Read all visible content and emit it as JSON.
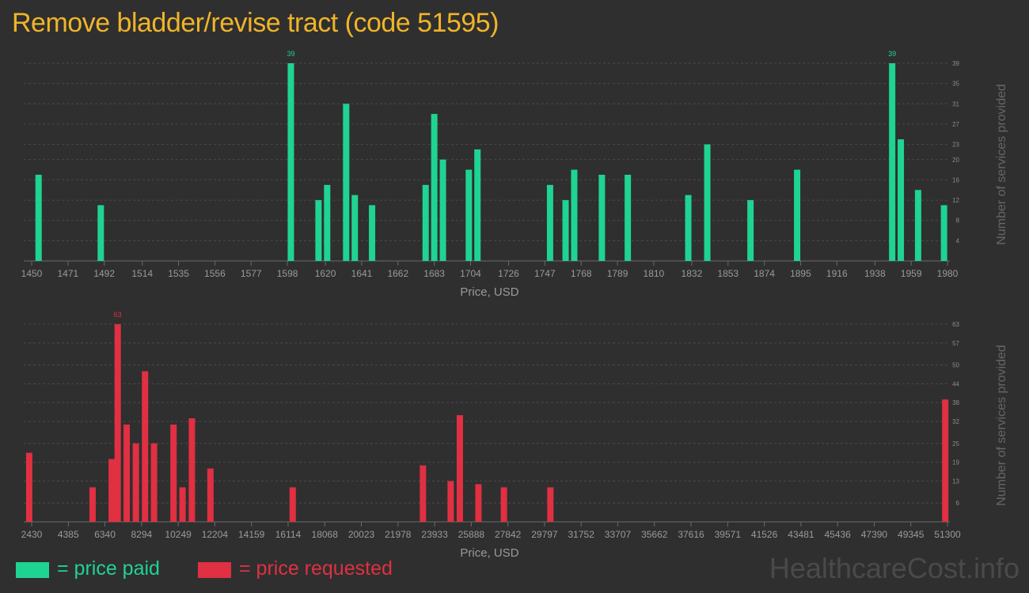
{
  "title": "Remove bladder/revise tract (code 51595)",
  "legend": {
    "paid_label": "= price paid",
    "requested_label": "= price requested",
    "paid_color": "#1fd393",
    "requested_color": "#e03042"
  },
  "watermark": "HealthcareCost.info",
  "chart_data": [
    {
      "type": "bar",
      "series_name": "price paid",
      "color": "#1fd393",
      "xlabel": "Price, USD",
      "ylabel": "Number of services provided",
      "xlim": [
        1450,
        1980
      ],
      "ylim": [
        0,
        39
      ],
      "x_ticks": [
        "1450",
        "1471",
        "1492",
        "1514",
        "1535",
        "1556",
        "1577",
        "1598",
        "1620",
        "1641",
        "1662",
        "1683",
        "1704",
        "1726",
        "1747",
        "1768",
        "1789",
        "1810",
        "1832",
        "1853",
        "1874",
        "1895",
        "1916",
        "1938",
        "1959",
        "1980"
      ],
      "y_ticks": [
        "4",
        "8",
        "12",
        "16",
        "20",
        "23",
        "27",
        "31",
        "35",
        "39"
      ],
      "peak_labels": [
        {
          "x": 1600,
          "text": "39"
        },
        {
          "x": 1948,
          "text": "39"
        }
      ],
      "points": [
        {
          "x": 1454,
          "y": 17
        },
        {
          "x": 1490,
          "y": 11
        },
        {
          "x": 1600,
          "y": 39
        },
        {
          "x": 1616,
          "y": 12
        },
        {
          "x": 1621,
          "y": 15
        },
        {
          "x": 1632,
          "y": 31
        },
        {
          "x": 1637,
          "y": 13
        },
        {
          "x": 1647,
          "y": 11
        },
        {
          "x": 1678,
          "y": 15
        },
        {
          "x": 1683,
          "y": 29
        },
        {
          "x": 1688,
          "y": 20
        },
        {
          "x": 1703,
          "y": 18
        },
        {
          "x": 1708,
          "y": 22
        },
        {
          "x": 1750,
          "y": 15
        },
        {
          "x": 1759,
          "y": 12
        },
        {
          "x": 1764,
          "y": 18
        },
        {
          "x": 1780,
          "y": 17
        },
        {
          "x": 1795,
          "y": 17
        },
        {
          "x": 1830,
          "y": 13
        },
        {
          "x": 1841,
          "y": 23
        },
        {
          "x": 1866,
          "y": 12
        },
        {
          "x": 1893,
          "y": 18
        },
        {
          "x": 1948,
          "y": 39
        },
        {
          "x": 1953,
          "y": 24
        },
        {
          "x": 1963,
          "y": 14
        },
        {
          "x": 1978,
          "y": 11
        }
      ]
    },
    {
      "type": "bar",
      "series_name": "price requested",
      "color": "#e03042",
      "xlabel": "Price, USD",
      "ylabel": "Number of services provided",
      "xlim": [
        2430,
        51300
      ],
      "ylim": [
        0,
        63
      ],
      "x_ticks": [
        "2430",
        "4385",
        "6340",
        "8294",
        "10249",
        "12204",
        "14159",
        "16114",
        "18068",
        "20023",
        "21978",
        "23933",
        "25888",
        "27842",
        "29797",
        "31752",
        "33707",
        "35662",
        "37616",
        "39571",
        "41526",
        "43481",
        "45436",
        "47390",
        "49345",
        "51300"
      ],
      "y_ticks": [
        "6",
        "13",
        "19",
        "25",
        "32",
        "38",
        "44",
        "50",
        "57",
        "63"
      ],
      "peak_labels": [
        {
          "x": 7021,
          "text": "63"
        }
      ],
      "points": [
        {
          "x": 2300,
          "y": 22
        },
        {
          "x": 5680,
          "y": 11
        },
        {
          "x": 6700,
          "y": 20
        },
        {
          "x": 7020,
          "y": 63
        },
        {
          "x": 7500,
          "y": 31
        },
        {
          "x": 7990,
          "y": 25
        },
        {
          "x": 8480,
          "y": 48
        },
        {
          "x": 8960,
          "y": 25
        },
        {
          "x": 10000,
          "y": 31
        },
        {
          "x": 10480,
          "y": 11
        },
        {
          "x": 10980,
          "y": 33
        },
        {
          "x": 11970,
          "y": 17
        },
        {
          "x": 16360,
          "y": 11
        },
        {
          "x": 23310,
          "y": 18
        },
        {
          "x": 24790,
          "y": 13
        },
        {
          "x": 25280,
          "y": 34
        },
        {
          "x": 26270,
          "y": 12
        },
        {
          "x": 27630,
          "y": 11
        },
        {
          "x": 30110,
          "y": 11
        },
        {
          "x": 51180,
          "y": 39
        }
      ]
    }
  ]
}
